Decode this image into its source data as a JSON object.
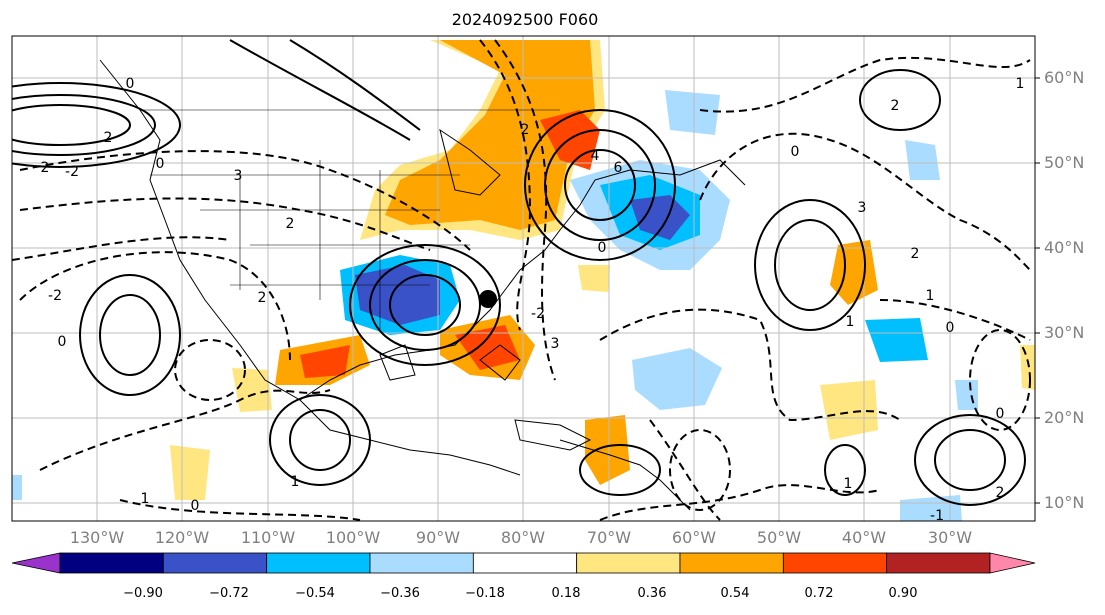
{
  "title": "2024092500 F060",
  "lat_labels": [
    "60°N",
    "50°N",
    "40°N",
    "30°N",
    "20°N",
    "10°N"
  ],
  "lon_labels": [
    "130°W",
    "120°W",
    "110°W",
    "100°W",
    "90°W",
    "80°W",
    "70°W",
    "60°W",
    "50°W",
    "40°W",
    "30°W"
  ],
  "colorbar": {
    "levels": [
      "−0.90",
      "−0.72",
      "−0.54",
      "−0.36",
      "−0.18",
      "0.18",
      "0.36",
      "0.54",
      "0.72",
      "0.90"
    ],
    "colors": [
      "#9933cc",
      "#000080",
      "#3a52c8",
      "#00bfff",
      "#aadcff",
      "#ffffff",
      "#ffe680",
      "#ffa500",
      "#ff4500",
      "#b22222",
      "#ff88aa"
    ]
  },
  "contour_labels": [
    "0",
    "2",
    "2",
    "0",
    "-2",
    "3",
    "2",
    "2",
    "-2",
    "0",
    "6",
    "4",
    "2",
    "3",
    "-2",
    "0",
    "2",
    "0",
    "1",
    "1",
    "3",
    "2",
    "1",
    "0",
    "0",
    "2",
    "-1",
    "0",
    "1",
    "1",
    "1"
  ]
}
